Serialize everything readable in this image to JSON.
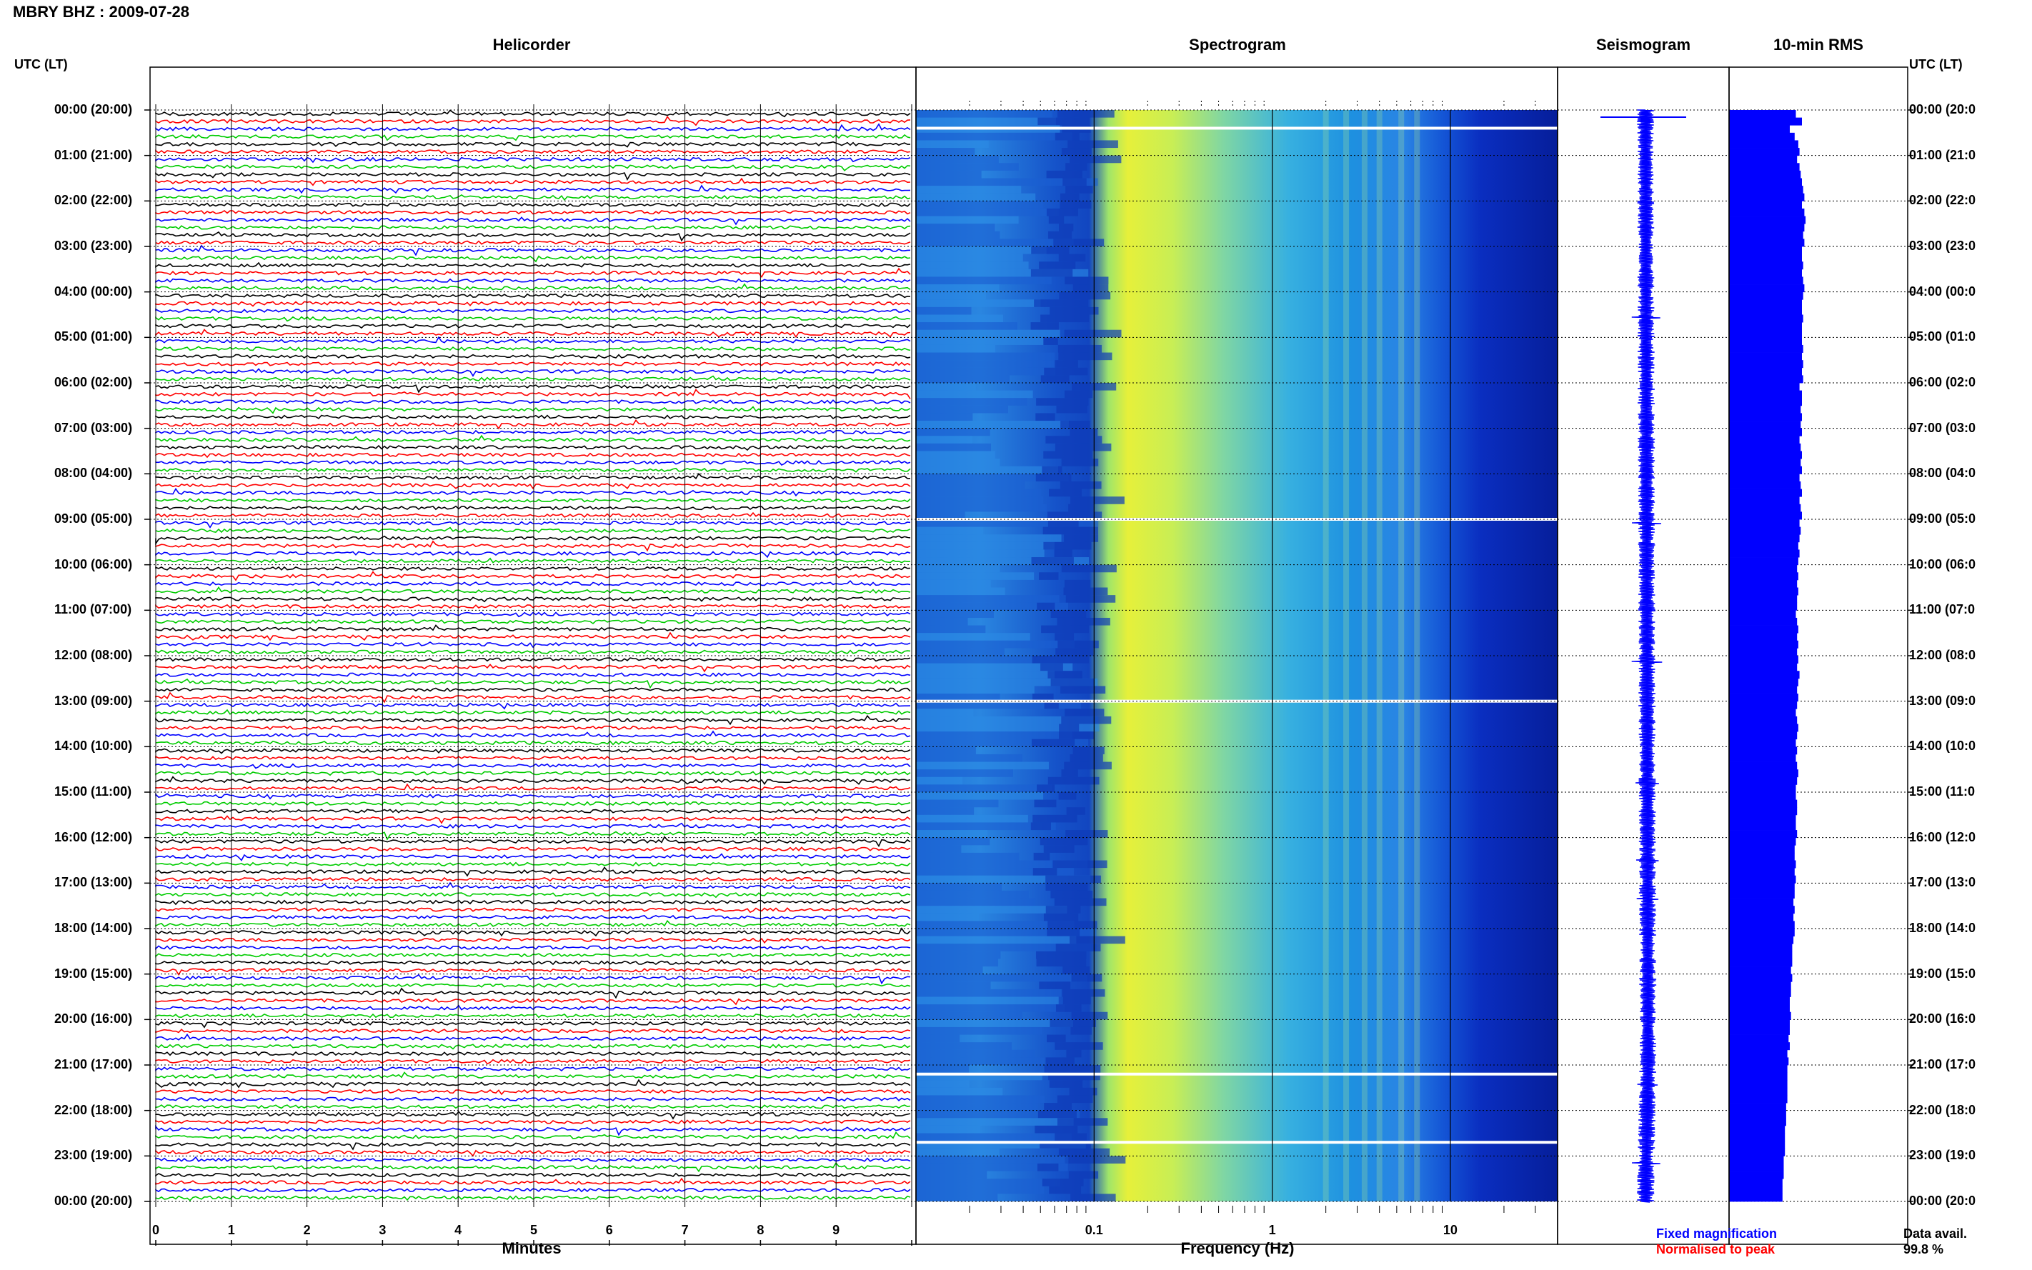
{
  "header": {
    "station": "MBRY BHZ",
    "date": "2009-07-28"
  },
  "panels": {
    "helicorder": "Helicorder",
    "spectrogram": "Spectrogram",
    "seismogram": "Seismogram",
    "rms": "10-min RMS"
  },
  "time_axis": {
    "label": "UTC (LT)",
    "ticks": [
      "00:00 (20:00)",
      "01:00 (21:00)",
      "02:00 (22:00)",
      "03:00 (23:00)",
      "04:00 (00:00)",
      "05:00 (01:00)",
      "06:00 (02:00)",
      "07:00 (03:00)",
      "08:00 (04:00)",
      "09:00 (05:00)",
      "10:00 (06:00)",
      "11:00 (07:00)",
      "12:00 (08:00)",
      "13:00 (09:00)",
      "14:00 (10:00)",
      "15:00 (11:00)",
      "16:00 (12:00)",
      "17:00 (13:00)",
      "18:00 (14:00)",
      "19:00 (15:00)",
      "20:00 (16:00)",
      "21:00 (17:00)",
      "22:00 (18:00)",
      "23:00 (19:00)",
      "00:00 (20:00)"
    ],
    "right_ticks": [
      "00:00 (20:0",
      "01:00 (21:0",
      "02:00 (22:0",
      "03:00 (23:0",
      "04:00 (00:0",
      "05:00 (01:0",
      "06:00 (02:0",
      "07:00 (03:0",
      "08:00 (04:0",
      "09:00 (05:0",
      "10:00 (06:0",
      "11:00 (07:0",
      "12:00 (08:0",
      "13:00 (09:0",
      "14:00 (10:0",
      "15:00 (11:0",
      "16:00 (12:0",
      "17:00 (13:0",
      "18:00 (14:0",
      "19:00 (15:0",
      "20:00 (16:0",
      "21:00 (17:0",
      "22:00 (18:0",
      "23:00 (19:0",
      "00:00 (20:0"
    ]
  },
  "helicorder": {
    "xlabel": "Minutes",
    "xticks": [
      "0",
      "1",
      "2",
      "3",
      "4",
      "5",
      "6",
      "7",
      "8",
      "9"
    ],
    "trace_colors": [
      "#000000",
      "#ff0000",
      "#0000ff",
      "#00cc00"
    ],
    "traces_per_hour": 6
  },
  "spectrogram": {
    "xlabel": "Frequency (Hz)",
    "xticks": [
      "0.1",
      "1",
      "10"
    ],
    "xscale": "log",
    "xlim_hz": [
      0.01,
      40
    ]
  },
  "legend": {
    "fixed": "Fixed magnification",
    "fixed_color": "#0000ff",
    "normalised": "Normalised to peak",
    "normalised_color": "#ff0000"
  },
  "availability": {
    "label": "Data avail.",
    "value": "99.8 %"
  },
  "chart_data": {
    "type": "heatmap",
    "title": "MBRY BHZ : 2009-07-28",
    "rms_color": "#0000ff",
    "rms_10min_relative": [
      0.55,
      0.6,
      0.5,
      0.54,
      0.57,
      0.58,
      0.56,
      0.58,
      0.59,
      0.6,
      0.61,
      0.62,
      0.6,
      0.62,
      0.63,
      0.62,
      0.61,
      0.62,
      0.6,
      0.6,
      0.61,
      0.6,
      0.61,
      0.62,
      0.61,
      0.6,
      0.6,
      0.61,
      0.6,
      0.6,
      0.6,
      0.61,
      0.6,
      0.61,
      0.6,
      0.61,
      0.58,
      0.6,
      0.6,
      0.59,
      0.6,
      0.59,
      0.6,
      0.58,
      0.59,
      0.6,
      0.59,
      0.6,
      0.58,
      0.59,
      0.6,
      0.58,
      0.59,
      0.6,
      0.58,
      0.59,
      0.58,
      0.57,
      0.58,
      0.57,
      0.56,
      0.57,
      0.56,
      0.57,
      0.56,
      0.56,
      0.55,
      0.56,
      0.57,
      0.56,
      0.57,
      0.56,
      0.57,
      0.56,
      0.58,
      0.57,
      0.56,
      0.57,
      0.56,
      0.55,
      0.56,
      0.57,
      0.56,
      0.55,
      0.56,
      0.55,
      0.56,
      0.57,
      0.56,
      0.55,
      0.55,
      0.56,
      0.56,
      0.55,
      0.55,
      0.56,
      0.55,
      0.54,
      0.54,
      0.55,
      0.54,
      0.55,
      0.54,
      0.54,
      0.53,
      0.54,
      0.53,
      0.54,
      0.54,
      0.53,
      0.52,
      0.52,
      0.52,
      0.51,
      0.52,
      0.51,
      0.51,
      0.5,
      0.5,
      0.51,
      0.5,
      0.5,
      0.49,
      0.5,
      0.48,
      0.49,
      0.48,
      0.48,
      0.48,
      0.48,
      0.48,
      0.47,
      0.47,
      0.47,
      0.46,
      0.46,
      0.46,
      0.46,
      0.45,
      0.45,
      0.45,
      0.44,
      0.44,
      0.44
    ],
    "gaps_hours": [
      0.4,
      9.0,
      13.0,
      21.2,
      22.7
    ]
  }
}
